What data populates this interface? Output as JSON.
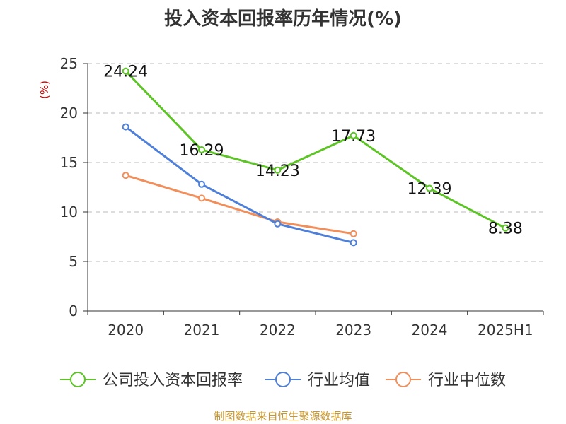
{
  "chart_data": {
    "type": "line",
    "title": "投入资本回报率历年情况(%)",
    "unit_label": "(%)",
    "categories": [
      "2020",
      "2021",
      "2022",
      "2023",
      "2024",
      "2025H1"
    ],
    "ylim": [
      0,
      25
    ],
    "yticks": [
      0,
      5,
      10,
      15,
      20,
      25
    ],
    "grid": "horizontal-dashed",
    "legend_position": "bottom",
    "series": [
      {
        "name": "公司投入资本回报率",
        "color": "#5cc424",
        "values": [
          24.24,
          16.29,
          14.23,
          17.73,
          12.39,
          8.38
        ],
        "labels": [
          "24.24",
          "16.29",
          "14.23",
          "17.73",
          "12.39",
          "8.38"
        ]
      },
      {
        "name": "行业均值",
        "color": "#4e7fd9",
        "values": [
          18.6,
          12.8,
          8.8,
          6.9,
          null,
          null
        ]
      },
      {
        "name": "行业中位数",
        "color": "#f28e5a",
        "values": [
          13.7,
          11.4,
          9.0,
          7.8,
          null,
          null
        ]
      }
    ],
    "source": "制图数据来自恒生聚源数据库"
  }
}
